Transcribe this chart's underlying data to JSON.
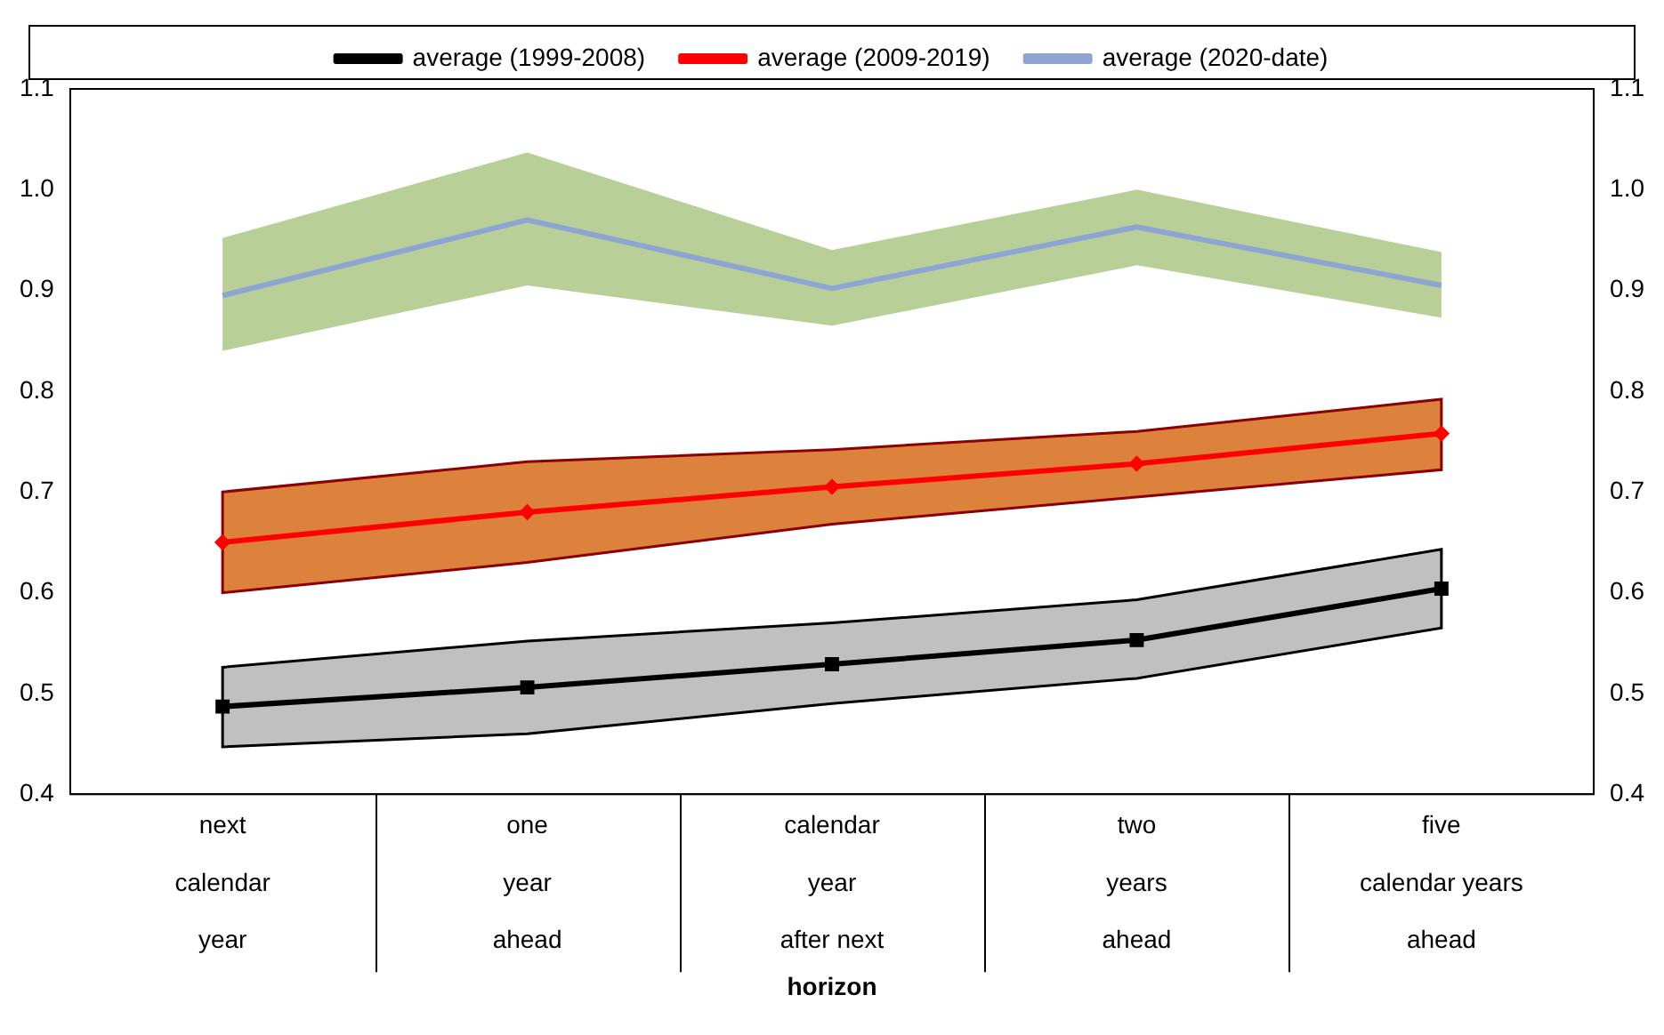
{
  "chart_data": {
    "type": "line",
    "xlabel": "horizon",
    "categories": [
      "next\ncalendar\nyear",
      "one\nyear\nahead",
      "calendar\nyear\nafter next",
      "two\nyears\nahead",
      "five\ncalendar years\nahead"
    ],
    "series": [
      {
        "name": "average (1999-2008)",
        "color": "#000000",
        "marker": "square",
        "values": [
          0.487,
          0.506,
          0.529,
          0.553,
          0.604
        ],
        "lower": [
          0.447,
          0.46,
          0.49,
          0.515,
          0.565
        ],
        "upper": [
          0.526,
          0.552,
          0.57,
          0.593,
          0.643
        ]
      },
      {
        "name": "average (2009-2019)",
        "color": "#ff0000",
        "marker": "diamond",
        "values": [
          0.65,
          0.68,
          0.705,
          0.728,
          0.758
        ],
        "lower": [
          0.6,
          0.63,
          0.668,
          0.695,
          0.722
        ],
        "upper": [
          0.7,
          0.73,
          0.742,
          0.76,
          0.792
        ]
      },
      {
        "name": "average (2020-date)",
        "color": "#8ea5d2",
        "marker": "none",
        "values": [
          0.895,
          0.97,
          0.902,
          0.963,
          0.905
        ],
        "lower": [
          0.84,
          0.905,
          0.865,
          0.925,
          0.873
        ],
        "upper": [
          0.952,
          1.037,
          0.94,
          1.0,
          0.938
        ]
      }
    ],
    "ylim": [
      0.4,
      1.1
    ],
    "yticks": [
      {
        "value": 0.4,
        "label": "0.4"
      },
      {
        "value": 0.5,
        "label": "0.5"
      },
      {
        "value": 0.6,
        "label": "0.6"
      },
      {
        "value": 0.7,
        "label": "0.7"
      },
      {
        "value": 0.8,
        "label": "0.8"
      },
      {
        "value": 0.9,
        "label": "0.9"
      },
      {
        "value": 1,
        "label": "1.0"
      },
      {
        "value": 1.1,
        "label": "1.1"
      }
    ],
    "y2lim": [
      0.4,
      1.1
    ],
    "y2ticks": [
      {
        "value": 0.4,
        "label": "0.4"
      },
      {
        "value": 0.5,
        "label": "0.5"
      },
      {
        "value": 0.6,
        "label": "0.6"
      },
      {
        "value": 0.7,
        "label": "0.7"
      },
      {
        "value": 0.8,
        "label": "0.8"
      },
      {
        "value": 0.9,
        "label": "0.9"
      },
      {
        "value": 1,
        "label": "1.0"
      },
      {
        "value": 1.1,
        "label": "1.1"
      }
    ],
    "grid": false,
    "legend": "top"
  }
}
